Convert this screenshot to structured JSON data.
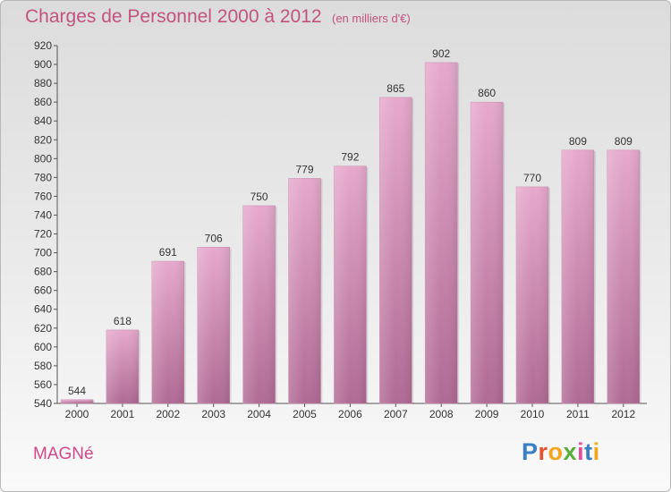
{
  "title": "Charges de Personnel 2000 à 2012",
  "subtitle": "(en milliers d'€)",
  "commune": "MAGNé",
  "logo": {
    "text": "Proxiti",
    "colors": [
      "#3a7fc4",
      "#e6532e",
      "#f2a51e",
      "#5aae3c",
      "#e94b9a",
      "#3a7fc4",
      "#f2a51e"
    ]
  },
  "chart_data": {
    "type": "bar",
    "categories": [
      "2000",
      "2001",
      "2002",
      "2003",
      "2004",
      "2005",
      "2006",
      "2007",
      "2008",
      "2009",
      "2010",
      "2011",
      "2012"
    ],
    "values": [
      544,
      618,
      691,
      706,
      750,
      779,
      792,
      865,
      902,
      860,
      770,
      809,
      809
    ],
    "ylim": [
      540,
      920
    ],
    "yticks": [
      540,
      560,
      580,
      600,
      620,
      640,
      660,
      680,
      700,
      720,
      740,
      760,
      780,
      800,
      820,
      840,
      860,
      880,
      900,
      920
    ],
    "bar_color": "#d98db5",
    "grid": false
  }
}
